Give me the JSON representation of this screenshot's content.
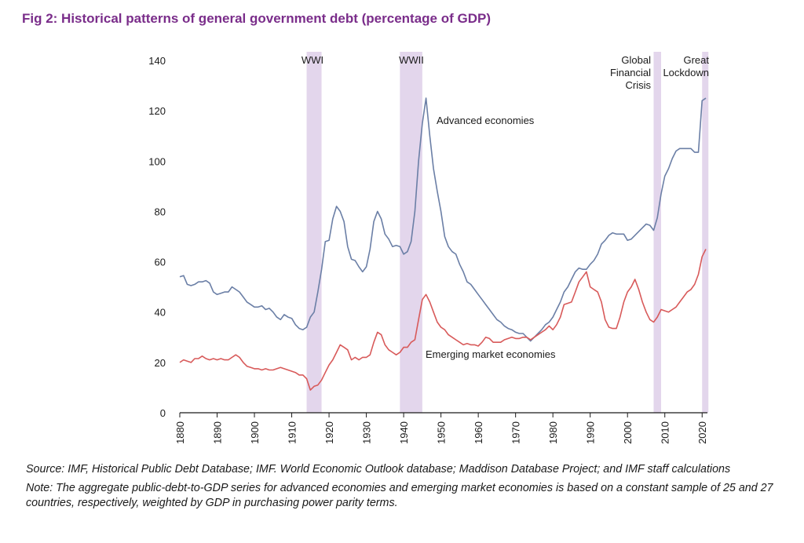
{
  "figure": {
    "title": "Fig 2: Historical patterns of general government debt (percentage of GDP)",
    "source": "Source: IMF, Historical Public Debt Database; IMF. World Economic Outlook database; Maddison Database Project; and IMF staff calculations",
    "note": "Note: The aggregate public-debt-to-GDP series for advanced economies and emerging market economies is based on a constant sample of 25 and 27 countries, respectively, weighted by GDP in purchasing power parity terms."
  },
  "chart_data": {
    "type": "line",
    "title": "Fig 2: Historical patterns of general government debt (percentage of GDP)",
    "xlabel": "",
    "ylabel": "",
    "xlim": [
      1880,
      2021
    ],
    "ylim": [
      0,
      140
    ],
    "grid": false,
    "legend": "none",
    "x_ticks": [
      1880,
      1890,
      1900,
      1910,
      1920,
      1930,
      1940,
      1950,
      1960,
      1970,
      1980,
      1990,
      2000,
      2010,
      2020
    ],
    "y_ticks": [
      0,
      20,
      40,
      60,
      80,
      100,
      120,
      140
    ],
    "shaded_periods": [
      {
        "label": "WWI",
        "start": 1914,
        "end": 1918
      },
      {
        "label": "WWII",
        "start": 1939,
        "end": 1945
      },
      {
        "label": "Global Financial Crisis",
        "label_lines": [
          "Global",
          "Financial",
          "Crisis"
        ],
        "start": 2007,
        "end": 2009
      },
      {
        "label": "Great Lockdown",
        "label_lines": [
          "Great",
          "Lockdown"
        ],
        "start": 2020,
        "end": 2021
      }
    ],
    "shade_color": "#e3d6ec",
    "series": [
      {
        "name": "Advanced economies",
        "color": "#6b7fa6",
        "points": [
          [
            1880,
            54
          ],
          [
            1881,
            54.5
          ],
          [
            1882,
            51
          ],
          [
            1883,
            50.5
          ],
          [
            1884,
            51
          ],
          [
            1885,
            52
          ],
          [
            1886,
            52
          ],
          [
            1887,
            52.5
          ],
          [
            1888,
            51.5
          ],
          [
            1889,
            48
          ],
          [
            1890,
            47
          ],
          [
            1891,
            47.5
          ],
          [
            1892,
            48
          ],
          [
            1893,
            48
          ],
          [
            1894,
            50
          ],
          [
            1895,
            49
          ],
          [
            1896,
            48
          ],
          [
            1897,
            46
          ],
          [
            1898,
            44
          ],
          [
            1899,
            43
          ],
          [
            1900,
            42
          ],
          [
            1901,
            42
          ],
          [
            1902,
            42.5
          ],
          [
            1903,
            41
          ],
          [
            1904,
            41.5
          ],
          [
            1905,
            40
          ],
          [
            1906,
            38
          ],
          [
            1907,
            37
          ],
          [
            1908,
            39
          ],
          [
            1909,
            38
          ],
          [
            1910,
            37.5
          ],
          [
            1911,
            35
          ],
          [
            1912,
            33.5
          ],
          [
            1913,
            33
          ],
          [
            1914,
            34
          ],
          [
            1915,
            38
          ],
          [
            1916,
            40
          ],
          [
            1917,
            48
          ],
          [
            1918,
            57
          ],
          [
            1919,
            68
          ],
          [
            1920,
            68.5
          ],
          [
            1921,
            77
          ],
          [
            1922,
            82
          ],
          [
            1923,
            80
          ],
          [
            1924,
            76
          ],
          [
            1925,
            66
          ],
          [
            1926,
            61
          ],
          [
            1927,
            60.5
          ],
          [
            1928,
            58
          ],
          [
            1929,
            56
          ],
          [
            1930,
            58
          ],
          [
            1931,
            65
          ],
          [
            1932,
            76
          ],
          [
            1933,
            80
          ],
          [
            1934,
            77
          ],
          [
            1935,
            71
          ],
          [
            1936,
            69
          ],
          [
            1937,
            66
          ],
          [
            1938,
            66.5
          ],
          [
            1939,
            66
          ],
          [
            1940,
            63
          ],
          [
            1941,
            64
          ],
          [
            1942,
            68
          ],
          [
            1943,
            80
          ],
          [
            1944,
            100
          ],
          [
            1945,
            115
          ],
          [
            1946,
            125
          ],
          [
            1947,
            110
          ],
          [
            1948,
            97
          ],
          [
            1949,
            88
          ],
          [
            1950,
            80
          ],
          [
            1951,
            70
          ],
          [
            1952,
            66
          ],
          [
            1953,
            64
          ],
          [
            1954,
            63
          ],
          [
            1955,
            59
          ],
          [
            1956,
            56
          ],
          [
            1957,
            52
          ],
          [
            1958,
            51
          ],
          [
            1959,
            49
          ],
          [
            1960,
            47
          ],
          [
            1961,
            45
          ],
          [
            1962,
            43
          ],
          [
            1963,
            41
          ],
          [
            1964,
            39
          ],
          [
            1965,
            37
          ],
          [
            1966,
            36
          ],
          [
            1967,
            34.5
          ],
          [
            1968,
            33.5
          ],
          [
            1969,
            33
          ],
          [
            1970,
            32
          ],
          [
            1971,
            31.5
          ],
          [
            1972,
            31.5
          ],
          [
            1973,
            30
          ],
          [
            1974,
            28.5
          ],
          [
            1975,
            30
          ],
          [
            1976,
            31.5
          ],
          [
            1977,
            33
          ],
          [
            1978,
            35
          ],
          [
            1979,
            36
          ],
          [
            1980,
            38
          ],
          [
            1981,
            41
          ],
          [
            1982,
            44
          ],
          [
            1983,
            48
          ],
          [
            1984,
            50
          ],
          [
            1985,
            53
          ],
          [
            1986,
            56
          ],
          [
            1987,
            57.5
          ],
          [
            1988,
            57
          ],
          [
            1989,
            57
          ],
          [
            1990,
            59
          ],
          [
            1991,
            60.5
          ],
          [
            1992,
            63
          ],
          [
            1993,
            67
          ],
          [
            1994,
            68.5
          ],
          [
            1995,
            70.5
          ],
          [
            1996,
            71.5
          ],
          [
            1997,
            71
          ],
          [
            1998,
            71
          ],
          [
            1999,
            71
          ],
          [
            2000,
            68.5
          ],
          [
            2001,
            69
          ],
          [
            2002,
            70.5
          ],
          [
            2003,
            72
          ],
          [
            2004,
            73.5
          ],
          [
            2005,
            75
          ],
          [
            2006,
            74.5
          ],
          [
            2007,
            72.5
          ],
          [
            2008,
            77.5
          ],
          [
            2009,
            87
          ],
          [
            2010,
            94
          ],
          [
            2011,
            97
          ],
          [
            2012,
            101
          ],
          [
            2013,
            104
          ],
          [
            2014,
            105
          ],
          [
            2015,
            105
          ],
          [
            2016,
            105
          ],
          [
            2017,
            105
          ],
          [
            2018,
            103.5
          ],
          [
            2019,
            103.5
          ],
          [
            2020,
            124
          ],
          [
            2021,
            125
          ]
        ]
      },
      {
        "name": "Emerging market economies",
        "color": "#d85a5a",
        "points": [
          [
            1880,
            20
          ],
          [
            1881,
            21
          ],
          [
            1882,
            20.5
          ],
          [
            1883,
            20
          ],
          [
            1884,
            21.5
          ],
          [
            1885,
            21.5
          ],
          [
            1886,
            22.5
          ],
          [
            1887,
            21.5
          ],
          [
            1888,
            21
          ],
          [
            1889,
            21.5
          ],
          [
            1890,
            21
          ],
          [
            1891,
            21.5
          ],
          [
            1892,
            21
          ],
          [
            1893,
            21
          ],
          [
            1894,
            22
          ],
          [
            1895,
            23
          ],
          [
            1896,
            22
          ],
          [
            1897,
            20
          ],
          [
            1898,
            18.5
          ],
          [
            1899,
            18
          ],
          [
            1900,
            17.5
          ],
          [
            1901,
            17.5
          ],
          [
            1902,
            17
          ],
          [
            1903,
            17.5
          ],
          [
            1904,
            17
          ],
          [
            1905,
            17
          ],
          [
            1906,
            17.5
          ],
          [
            1907,
            18
          ],
          [
            1908,
            17.5
          ],
          [
            1909,
            17
          ],
          [
            1910,
            16.5
          ],
          [
            1911,
            16
          ],
          [
            1912,
            15
          ],
          [
            1913,
            15
          ],
          [
            1914,
            13.5
          ],
          [
            1915,
            9
          ],
          [
            1916,
            10.5
          ],
          [
            1917,
            11
          ],
          [
            1918,
            13
          ],
          [
            1919,
            16
          ],
          [
            1920,
            19
          ],
          [
            1921,
            21
          ],
          [
            1922,
            24
          ],
          [
            1923,
            27
          ],
          [
            1924,
            26
          ],
          [
            1925,
            25
          ],
          [
            1926,
            21
          ],
          [
            1927,
            22
          ],
          [
            1928,
            21
          ],
          [
            1929,
            22
          ],
          [
            1930,
            22
          ],
          [
            1931,
            23
          ],
          [
            1932,
            28
          ],
          [
            1933,
            32
          ],
          [
            1934,
            31
          ],
          [
            1935,
            27
          ],
          [
            1936,
            25
          ],
          [
            1937,
            24
          ],
          [
            1938,
            23
          ],
          [
            1939,
            24
          ],
          [
            1940,
            26
          ],
          [
            1941,
            26
          ],
          [
            1942,
            28
          ],
          [
            1943,
            29
          ],
          [
            1944,
            37
          ],
          [
            1945,
            45
          ],
          [
            1946,
            47
          ],
          [
            1947,
            44
          ],
          [
            1948,
            40
          ],
          [
            1949,
            36
          ],
          [
            1950,
            34
          ],
          [
            1951,
            33
          ],
          [
            1952,
            31
          ],
          [
            1953,
            30
          ],
          [
            1954,
            29
          ],
          [
            1955,
            28
          ],
          [
            1956,
            27
          ],
          [
            1957,
            27.5
          ],
          [
            1958,
            27
          ],
          [
            1959,
            27
          ],
          [
            1960,
            26.5
          ],
          [
            1961,
            28
          ],
          [
            1962,
            30
          ],
          [
            1963,
            29.5
          ],
          [
            1964,
            28
          ],
          [
            1965,
            28
          ],
          [
            1966,
            28
          ],
          [
            1967,
            29
          ],
          [
            1968,
            29.5
          ],
          [
            1969,
            30
          ],
          [
            1970,
            29.5
          ],
          [
            1971,
            29.5
          ],
          [
            1972,
            30
          ],
          [
            1973,
            30
          ],
          [
            1974,
            29
          ],
          [
            1975,
            30
          ],
          [
            1976,
            31
          ],
          [
            1977,
            32
          ],
          [
            1978,
            33
          ],
          [
            1979,
            34.5
          ],
          [
            1980,
            33
          ],
          [
            1981,
            35
          ],
          [
            1982,
            38
          ],
          [
            1983,
            43
          ],
          [
            1984,
            43.5
          ],
          [
            1985,
            44
          ],
          [
            1986,
            48
          ],
          [
            1987,
            52
          ],
          [
            1988,
            54
          ],
          [
            1989,
            56
          ],
          [
            1990,
            50
          ],
          [
            1991,
            49
          ],
          [
            1992,
            48
          ],
          [
            1993,
            44
          ],
          [
            1994,
            37
          ],
          [
            1995,
            34
          ],
          [
            1996,
            33.5
          ],
          [
            1997,
            33.5
          ],
          [
            1998,
            38
          ],
          [
            1999,
            44
          ],
          [
            2000,
            48
          ],
          [
            2001,
            50
          ],
          [
            2002,
            53
          ],
          [
            2003,
            49
          ],
          [
            2004,
            44
          ],
          [
            2005,
            40
          ],
          [
            2006,
            37
          ],
          [
            2007,
            36
          ],
          [
            2008,
            38
          ],
          [
            2009,
            41
          ],
          [
            2010,
            40.5
          ],
          [
            2011,
            40
          ],
          [
            2012,
            41
          ],
          [
            2013,
            42
          ],
          [
            2014,
            44
          ],
          [
            2015,
            46
          ],
          [
            2016,
            48
          ],
          [
            2017,
            49
          ],
          [
            2018,
            51
          ],
          [
            2019,
            55
          ],
          [
            2020,
            62
          ],
          [
            2021,
            65
          ]
        ]
      }
    ],
    "series_labels": [
      {
        "text": "Advanced economies",
        "series": "Advanced economies"
      },
      {
        "text": "Emerging market economies",
        "series": "Emerging market economies"
      }
    ]
  }
}
